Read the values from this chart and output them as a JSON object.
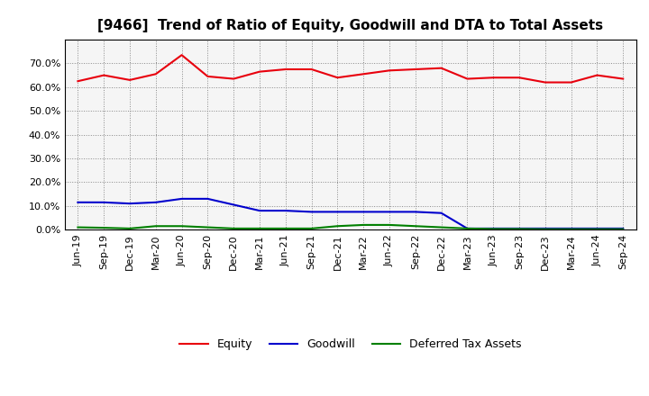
{
  "title": "[9466]  Trend of Ratio of Equity, Goodwill and DTA to Total Assets",
  "x_labels": [
    "Jun-19",
    "Sep-19",
    "Dec-19",
    "Mar-20",
    "Jun-20",
    "Sep-20",
    "Dec-20",
    "Mar-21",
    "Jun-21",
    "Sep-21",
    "Dec-21",
    "Mar-22",
    "Jun-22",
    "Sep-22",
    "Dec-22",
    "Mar-23",
    "Jun-23",
    "Sep-23",
    "Dec-23",
    "Mar-24",
    "Jun-24",
    "Sep-24"
  ],
  "equity": [
    62.5,
    65.0,
    63.0,
    65.5,
    73.5,
    64.5,
    63.5,
    66.5,
    67.5,
    67.5,
    64.0,
    65.5,
    67.0,
    67.5,
    68.0,
    63.5,
    64.0,
    64.0,
    62.0,
    62.0,
    65.0,
    63.5
  ],
  "goodwill": [
    11.5,
    11.5,
    11.0,
    11.5,
    13.0,
    13.0,
    10.5,
    8.0,
    8.0,
    7.5,
    7.5,
    7.5,
    7.5,
    7.5,
    7.0,
    0.5,
    0.5,
    0.5,
    0.5,
    0.5,
    0.5,
    0.5
  ],
  "dta": [
    1.0,
    0.8,
    0.5,
    1.5,
    1.5,
    1.0,
    0.5,
    0.5,
    0.5,
    0.5,
    1.5,
    2.0,
    2.0,
    1.5,
    1.0,
    0.5,
    0.3,
    0.3,
    0.2,
    0.2,
    0.2,
    0.2
  ],
  "equity_color": "#e8000d",
  "goodwill_color": "#0000cd",
  "dta_color": "#008000",
  "background_color": "#ffffff",
  "plot_bg_color": "#f5f5f5",
  "grid_color": "#888888",
  "ylim": [
    0,
    80
  ],
  "yticks": [
    0,
    10,
    20,
    30,
    40,
    50,
    60,
    70
  ],
  "legend_labels": [
    "Equity",
    "Goodwill",
    "Deferred Tax Assets"
  ],
  "title_fontsize": 11,
  "tick_fontsize": 8
}
